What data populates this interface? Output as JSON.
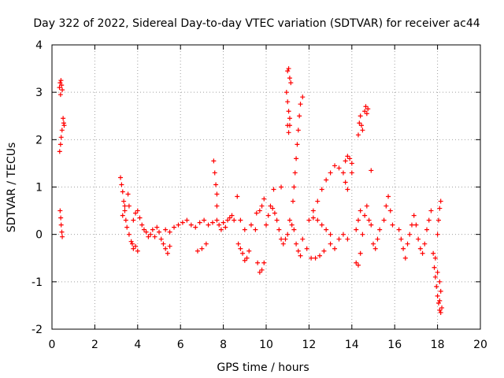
{
  "chart_data": {
    "type": "scatter",
    "title": "Day 322 of 2022, Sidereal Day-to-day VTEC variation (SDTVAR) for receiver ac44",
    "xlabel": "GPS time / hours",
    "ylabel": "SDTVAR / TECUs",
    "xlim": [
      0,
      20
    ],
    "ylim": [
      -2,
      4
    ],
    "xticks": [
      "0",
      "2",
      "4",
      "6",
      "8",
      "10",
      "12",
      "14",
      "16",
      "18",
      "20"
    ],
    "yticks": [
      "-2",
      "-1",
      "0",
      "1",
      "2",
      "3",
      "4"
    ],
    "grid": true,
    "legend": "none",
    "marker": "plus",
    "series_color": "#ff0000",
    "series": [
      {
        "name": "SDTVAR",
        "points": [
          [
            0.35,
            3.1
          ],
          [
            0.38,
            3.2
          ],
          [
            0.42,
            3.25
          ],
          [
            0.45,
            3.15
          ],
          [
            0.48,
            3.05
          ],
          [
            0.4,
            2.95
          ],
          [
            0.36,
            1.75
          ],
          [
            0.4,
            1.9
          ],
          [
            0.43,
            2.05
          ],
          [
            0.47,
            2.2
          ],
          [
            0.52,
            2.45
          ],
          [
            0.55,
            2.35
          ],
          [
            0.57,
            2.3
          ],
          [
            0.38,
            0.5
          ],
          [
            0.41,
            0.35
          ],
          [
            0.43,
            0.2
          ],
          [
            0.46,
            0.05
          ],
          [
            0.48,
            -0.05
          ],
          [
            3.2,
            1.2
          ],
          [
            3.25,
            1.05
          ],
          [
            3.3,
            0.9
          ],
          [
            3.35,
            0.7
          ],
          [
            3.4,
            0.5
          ],
          [
            3.45,
            0.3
          ],
          [
            3.5,
            0.15
          ],
          [
            3.3,
            0.4
          ],
          [
            3.4,
            0.6
          ],
          [
            3.55,
            0.85
          ],
          [
            3.6,
            0.6
          ],
          [
            3.6,
            0.0
          ],
          [
            3.7,
            -0.15
          ],
          [
            3.8,
            -0.3
          ],
          [
            3.9,
            -0.25
          ],
          [
            4.0,
            -0.35
          ],
          [
            3.75,
            -0.2
          ],
          [
            3.8,
            0.3
          ],
          [
            3.9,
            0.45
          ],
          [
            4.0,
            0.5
          ],
          [
            4.1,
            0.35
          ],
          [
            4.2,
            0.2
          ],
          [
            4.3,
            0.1
          ],
          [
            4.4,
            0.05
          ],
          [
            4.5,
            -0.05
          ],
          [
            4.6,
            0.0
          ],
          [
            4.7,
            0.1
          ],
          [
            4.8,
            -0.05
          ],
          [
            4.9,
            0.15
          ],
          [
            5.0,
            0.05
          ],
          [
            5.1,
            -0.1
          ],
          [
            5.2,
            -0.2
          ],
          [
            5.3,
            -0.3
          ],
          [
            5.4,
            -0.4
          ],
          [
            5.5,
            -0.25
          ],
          [
            5.3,
            0.1
          ],
          [
            5.5,
            0.05
          ],
          [
            5.7,
            0.15
          ],
          [
            5.9,
            0.2
          ],
          [
            6.1,
            0.25
          ],
          [
            6.3,
            0.3
          ],
          [
            6.5,
            0.2
          ],
          [
            6.7,
            0.15
          ],
          [
            6.9,
            0.25
          ],
          [
            7.1,
            0.3
          ],
          [
            7.3,
            0.2
          ],
          [
            7.5,
            0.25
          ],
          [
            6.8,
            -0.35
          ],
          [
            7.0,
            -0.3
          ],
          [
            7.2,
            -0.2
          ],
          [
            7.55,
            1.55
          ],
          [
            7.6,
            1.3
          ],
          [
            7.65,
            1.05
          ],
          [
            7.7,
            0.85
          ],
          [
            7.7,
            0.6
          ],
          [
            7.7,
            0.3
          ],
          [
            7.8,
            0.2
          ],
          [
            7.9,
            0.1
          ],
          [
            8.0,
            0.25
          ],
          [
            8.1,
            0.15
          ],
          [
            8.2,
            0.3
          ],
          [
            8.3,
            0.35
          ],
          [
            8.4,
            0.4
          ],
          [
            8.5,
            0.3
          ],
          [
            8.65,
            0.8
          ],
          [
            8.7,
            -0.2
          ],
          [
            8.8,
            -0.3
          ],
          [
            8.9,
            -0.4
          ],
          [
            9.0,
            -0.55
          ],
          [
            9.1,
            -0.5
          ],
          [
            9.2,
            -0.35
          ],
          [
            8.8,
            0.3
          ],
          [
            9.0,
            0.1
          ],
          [
            9.3,
            0.2
          ],
          [
            9.5,
            0.1
          ],
          [
            9.6,
            -0.6
          ],
          [
            9.7,
            -0.8
          ],
          [
            9.8,
            -0.75
          ],
          [
            9.9,
            -0.6
          ],
          [
            9.7,
            0.5
          ],
          [
            9.8,
            0.6
          ],
          [
            9.9,
            0.75
          ],
          [
            9.55,
            0.45
          ],
          [
            10.0,
            0.2
          ],
          [
            10.1,
            0.4
          ],
          [
            10.2,
            0.6
          ],
          [
            10.3,
            0.55
          ],
          [
            10.4,
            0.45
          ],
          [
            10.5,
            0.3
          ],
          [
            10.6,
            0.1
          ],
          [
            10.7,
            -0.1
          ],
          [
            10.8,
            -0.2
          ],
          [
            10.9,
            -0.1
          ],
          [
            11.0,
            0.0
          ],
          [
            10.35,
            0.95
          ],
          [
            10.7,
            1.0
          ],
          [
            11.0,
            3.45
          ],
          [
            11.05,
            3.5
          ],
          [
            11.1,
            3.3
          ],
          [
            11.15,
            3.2
          ],
          [
            10.95,
            3.0
          ],
          [
            11.0,
            2.8
          ],
          [
            11.05,
            2.6
          ],
          [
            11.1,
            2.45
          ],
          [
            11.0,
            2.3
          ],
          [
            11.05,
            2.15
          ],
          [
            11.1,
            2.3
          ],
          [
            11.1,
            0.3
          ],
          [
            11.2,
            0.2
          ],
          [
            11.3,
            0.1
          ],
          [
            11.4,
            -0.2
          ],
          [
            11.5,
            -0.35
          ],
          [
            11.6,
            -0.45
          ],
          [
            11.25,
            0.7
          ],
          [
            11.3,
            1.0
          ],
          [
            11.35,
            1.3
          ],
          [
            11.4,
            1.6
          ],
          [
            11.45,
            1.9
          ],
          [
            11.5,
            2.2
          ],
          [
            11.55,
            2.5
          ],
          [
            11.6,
            2.75
          ],
          [
            11.7,
            2.9
          ],
          [
            11.7,
            -0.1
          ],
          [
            11.9,
            -0.3
          ],
          [
            12.1,
            -0.5
          ],
          [
            12.3,
            -0.5
          ],
          [
            12.5,
            -0.45
          ],
          [
            12.7,
            -0.35
          ],
          [
            12.0,
            0.3
          ],
          [
            12.2,
            0.35
          ],
          [
            12.4,
            0.3
          ],
          [
            12.6,
            0.2
          ],
          [
            12.8,
            0.1
          ],
          [
            13.0,
            0.0
          ],
          [
            12.2,
            0.5
          ],
          [
            12.4,
            0.7
          ],
          [
            12.6,
            0.95
          ],
          [
            12.8,
            1.15
          ],
          [
            13.0,
            1.3
          ],
          [
            13.2,
            1.45
          ],
          [
            13.4,
            1.4
          ],
          [
            13.6,
            1.3
          ],
          [
            13.7,
            1.1
          ],
          [
            13.8,
            0.95
          ],
          [
            13.0,
            -0.2
          ],
          [
            13.2,
            -0.3
          ],
          [
            13.4,
            -0.1
          ],
          [
            13.6,
            0.0
          ],
          [
            13.8,
            -0.1
          ],
          [
            13.7,
            1.55
          ],
          [
            13.8,
            1.65
          ],
          [
            13.9,
            1.6
          ],
          [
            14.0,
            1.5
          ],
          [
            14.0,
            1.3
          ],
          [
            14.2,
            -0.6
          ],
          [
            14.3,
            -0.65
          ],
          [
            14.4,
            -0.4
          ],
          [
            14.2,
            0.1
          ],
          [
            14.3,
            0.3
          ],
          [
            14.4,
            0.5
          ],
          [
            14.3,
            2.1
          ],
          [
            14.35,
            2.35
          ],
          [
            14.4,
            2.5
          ],
          [
            14.45,
            2.3
          ],
          [
            14.5,
            2.2
          ],
          [
            14.6,
            2.6
          ],
          [
            14.65,
            2.7
          ],
          [
            14.7,
            2.55
          ],
          [
            14.75,
            2.65
          ],
          [
            14.5,
            0.0
          ],
          [
            14.6,
            0.4
          ],
          [
            14.7,
            0.6
          ],
          [
            14.8,
            0.3
          ],
          [
            14.9,
            0.2
          ],
          [
            14.9,
            1.35
          ],
          [
            15.0,
            -0.2
          ],
          [
            15.1,
            -0.3
          ],
          [
            15.2,
            -0.1
          ],
          [
            15.3,
            0.1
          ],
          [
            15.5,
            0.3
          ],
          [
            15.6,
            0.6
          ],
          [
            15.7,
            0.8
          ],
          [
            15.8,
            0.5
          ],
          [
            15.9,
            0.2
          ],
          [
            16.2,
            0.1
          ],
          [
            16.3,
            -0.1
          ],
          [
            16.4,
            -0.3
          ],
          [
            16.5,
            -0.5
          ],
          [
            16.6,
            -0.2
          ],
          [
            16.7,
            0.0
          ],
          [
            16.8,
            0.2
          ],
          [
            16.9,
            0.4
          ],
          [
            17.0,
            0.2
          ],
          [
            17.1,
            -0.1
          ],
          [
            17.2,
            -0.3
          ],
          [
            17.3,
            -0.4
          ],
          [
            17.4,
            -0.2
          ],
          [
            17.5,
            0.1
          ],
          [
            17.6,
            0.3
          ],
          [
            17.7,
            0.5
          ],
          [
            17.8,
            -0.4
          ],
          [
            17.85,
            -0.7
          ],
          [
            17.9,
            -0.9
          ],
          [
            17.95,
            -1.1
          ],
          [
            18.0,
            -1.3
          ],
          [
            18.05,
            -1.45
          ],
          [
            18.1,
            -1.6
          ],
          [
            18.15,
            -1.65
          ],
          [
            18.2,
            -1.55
          ],
          [
            18.1,
            -1.4
          ],
          [
            17.9,
            -0.5
          ],
          [
            18.0,
            -0.8
          ],
          [
            18.1,
            -1.0
          ],
          [
            18.15,
            -1.2
          ],
          [
            18.0,
            0.0
          ],
          [
            18.05,
            0.3
          ],
          [
            18.1,
            0.55
          ],
          [
            18.15,
            0.7
          ]
        ]
      }
    ]
  }
}
